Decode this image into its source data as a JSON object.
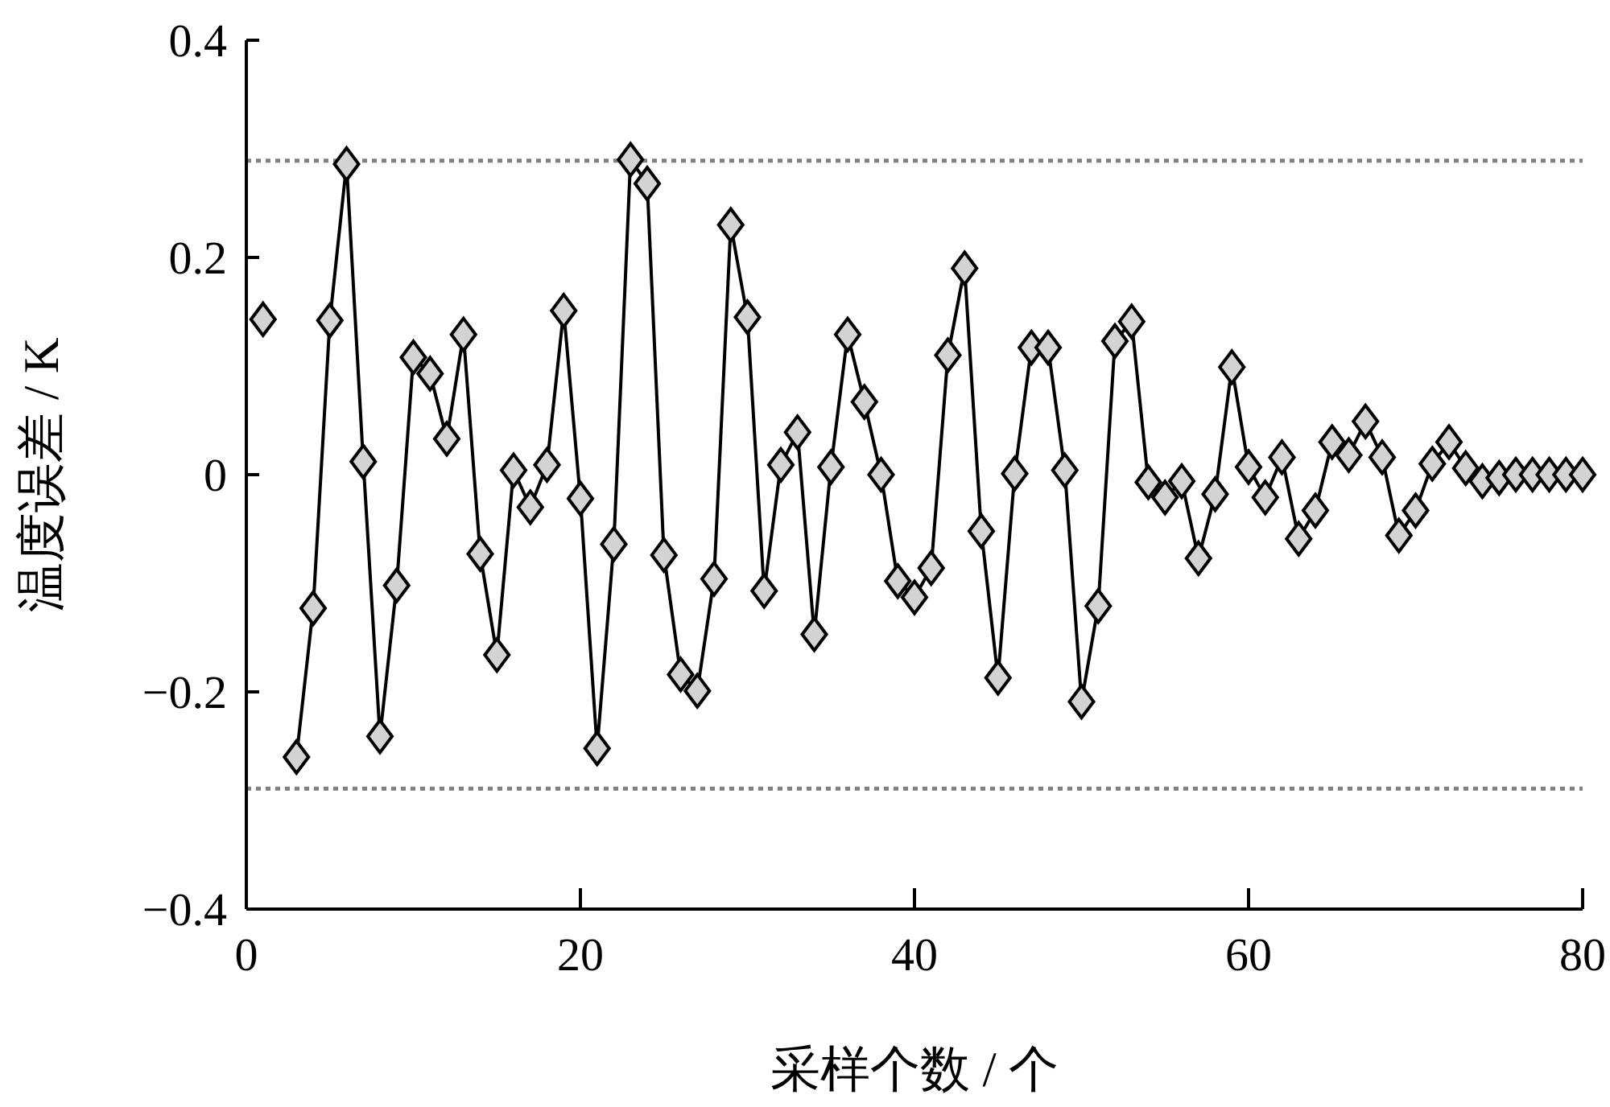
{
  "chart_data": {
    "type": "line",
    "xlabel": "采样个数 / 个",
    "ylabel": "温度误差 / K",
    "xlim": [
      0,
      80
    ],
    "xticks": [
      0,
      20,
      40,
      60,
      80
    ],
    "ylim": [
      -0.4,
      0.4
    ],
    "yticks": [
      {
        "value": -0.4,
        "label": "−0.4"
      },
      {
        "value": -0.2,
        "label": "−0.2"
      },
      0,
      0.2,
      0.4
    ],
    "grid": false,
    "marker": "diamond",
    "line_style": "solid",
    "ref_lines": [
      {
        "axis": "y",
        "value": 0.289,
        "color": "#808080",
        "line_style": "dotted"
      },
      {
        "axis": "y",
        "value": -0.289,
        "color": "#808080",
        "line_style": "dotted"
      }
    ],
    "series": [
      {
        "color": "#000000",
        "x": [
          1,
          2,
          3,
          4,
          5,
          6,
          7,
          8,
          9,
          10,
          11,
          12,
          13,
          14,
          15,
          16,
          17,
          18,
          19,
          20,
          21,
          22,
          23,
          24,
          25,
          26,
          27,
          28,
          29,
          30,
          31,
          32,
          33,
          34,
          35,
          36,
          37,
          38,
          39,
          40,
          41,
          42,
          43,
          44,
          45,
          46,
          47,
          48,
          49,
          50,
          51,
          52,
          53,
          54,
          55,
          56,
          57,
          58,
          59,
          60,
          61,
          62,
          63,
          64,
          65,
          66,
          67,
          68,
          69,
          70,
          71,
          72,
          73,
          74,
          75,
          76,
          77,
          78,
          79,
          80
        ],
        "values": [
          0.143,
          null,
          -0.26,
          -0.123,
          0.142,
          0.286,
          0.012,
          -0.241,
          -0.102,
          0.108,
          0.093,
          0.033,
          0.129,
          -0.073,
          -0.166,
          0.004,
          -0.03,
          0.009,
          0.151,
          -0.022,
          -0.252,
          -0.064,
          0.29,
          0.268,
          -0.074,
          -0.184,
          -0.199,
          -0.096,
          0.23,
          0.145,
          -0.107,
          0.009,
          0.039,
          -0.147,
          0.007,
          0.129,
          0.067,
          0,
          -0.098,
          -0.113,
          -0.086,
          0.11,
          0.19,
          -0.052,
          -0.187,
          0.001,
          0.117,
          0.117,
          0.004,
          -0.209,
          -0.121,
          0.123,
          0.141,
          -0.007,
          -0.021,
          -0.006,
          -0.077,
          -0.018,
          0.099,
          0.007,
          -0.021,
          0.016,
          -0.059,
          -0.033,
          0.03,
          0.018,
          0.049,
          0.016,
          -0.056,
          -0.033,
          0.01,
          0.03,
          0.006,
          -0.006,
          -0.003,
          0,
          0,
          0,
          0,
          0
        ]
      }
    ]
  }
}
